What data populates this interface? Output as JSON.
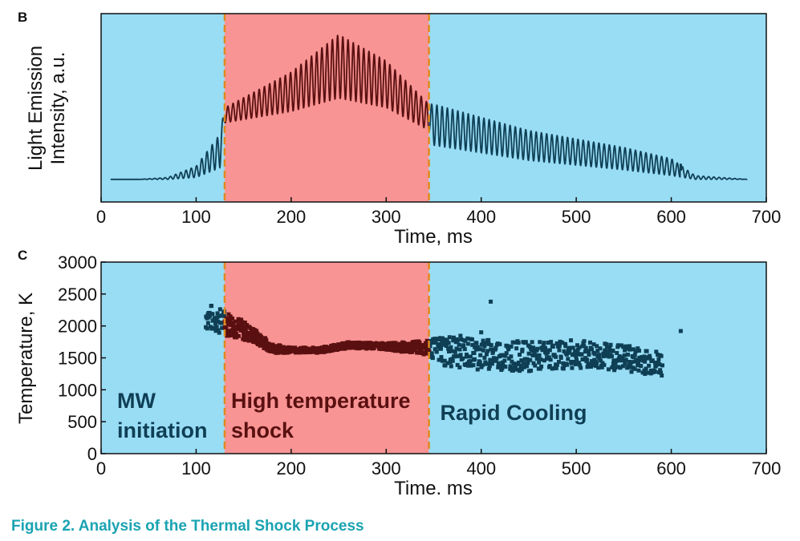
{
  "caption": "Figure 2.  Analysis of the Thermal Shock Process",
  "colors": {
    "background_region": "#99ddf5",
    "shock_region": "#f99494",
    "boundary_line": "#e08a1e",
    "trace": "#0f3f55",
    "trace_in_shock": "#5a1010",
    "axis": "#111111",
    "caption": "#1aa3b2"
  },
  "chart_data": [
    {
      "panel": "B",
      "type": "line",
      "xlabel": "Time, ms",
      "ylabel_lines": [
        "Light Emission",
        "Intensity, a.u."
      ],
      "xlim": [
        0,
        700
      ],
      "ylim": [
        0,
        1
      ],
      "y_tick_labels": false,
      "xticks": [
        0,
        100,
        200,
        300,
        400,
        500,
        600,
        700
      ],
      "regions": [
        {
          "from": 0,
          "to": 130,
          "color": "background_region"
        },
        {
          "from": 130,
          "to": 345,
          "color": "shock_region"
        },
        {
          "from": 345,
          "to": 700,
          "color": "background_region"
        }
      ],
      "boundaries": [
        130,
        345
      ],
      "series": [
        {
          "period_ms": 5.5,
          "baseline": 0.12,
          "envelope_lower": [
            [
              10,
              0.12
            ],
            [
              40,
              0.12
            ],
            [
              70,
              0.12
            ],
            [
              100,
              0.13
            ],
            [
              125,
              0.18
            ],
            [
              130,
              0.42
            ],
            [
              200,
              0.48
            ],
            [
              250,
              0.55
            ],
            [
              300,
              0.5
            ],
            [
              345,
              0.38
            ],
            [
              350,
              0.3
            ],
            [
              450,
              0.22
            ],
            [
              550,
              0.17
            ],
            [
              600,
              0.14
            ],
            [
              625,
              0.12
            ],
            [
              680,
              0.12
            ]
          ],
          "envelope_upper": [
            [
              10,
              0.12
            ],
            [
              40,
              0.12
            ],
            [
              70,
              0.13
            ],
            [
              100,
              0.19
            ],
            [
              125,
              0.36
            ],
            [
              130,
              0.5
            ],
            [
              200,
              0.69
            ],
            [
              250,
              0.89
            ],
            [
              300,
              0.75
            ],
            [
              345,
              0.52
            ],
            [
              350,
              0.52
            ],
            [
              450,
              0.38
            ],
            [
              550,
              0.29
            ],
            [
              600,
              0.23
            ],
            [
              625,
              0.14
            ],
            [
              680,
              0.12
            ]
          ],
          "spike": {
            "x": 610,
            "y": 0.2
          }
        }
      ]
    },
    {
      "panel": "C",
      "type": "scatter",
      "xlabel": "Time. ms",
      "ylabel": "Temperature, K",
      "xlim": [
        0,
        700
      ],
      "ylim": [
        0,
        3000
      ],
      "xticks": [
        0,
        100,
        200,
        300,
        400,
        500,
        600,
        700
      ],
      "yticks": [
        0,
        500,
        1000,
        1500,
        2000,
        2500,
        3000
      ],
      "regions": [
        {
          "from": 0,
          "to": 130,
          "color": "background_region",
          "label": [
            "MW",
            "initiation"
          ]
        },
        {
          "from": 130,
          "to": 345,
          "color": "shock_region",
          "label": [
            "High temperature",
            "shock"
          ]
        },
        {
          "from": 345,
          "to": 700,
          "color": "background_region",
          "label": [
            "Rapid Cooling"
          ]
        }
      ],
      "boundaries": [
        130,
        345
      ],
      "series": [
        {
          "trend": [
            [
              110,
              2150
            ],
            [
              130,
              2050
            ],
            [
              140,
              2000
            ],
            [
              160,
              1850
            ],
            [
              180,
              1650
            ],
            [
              200,
              1620
            ],
            [
              230,
              1620
            ],
            [
              260,
              1700
            ],
            [
              300,
              1680
            ],
            [
              345,
              1650
            ],
            [
              360,
              1620
            ],
            [
              400,
              1560
            ],
            [
              450,
              1520
            ],
            [
              500,
              1560
            ],
            [
              550,
              1500
            ],
            [
              590,
              1400
            ]
          ],
          "scatter_halfwidth": [
            [
              110,
              220
            ],
            [
              130,
              200
            ],
            [
              140,
              180
            ],
            [
              170,
              90
            ],
            [
              200,
              40
            ],
            [
              300,
              50
            ],
            [
              345,
              120
            ],
            [
              360,
              260
            ],
            [
              450,
              230
            ],
            [
              590,
              200
            ]
          ],
          "outliers": [
            [
              400,
              1900
            ],
            [
              410,
              2380
            ],
            [
              610,
              1920
            ]
          ]
        }
      ]
    }
  ]
}
